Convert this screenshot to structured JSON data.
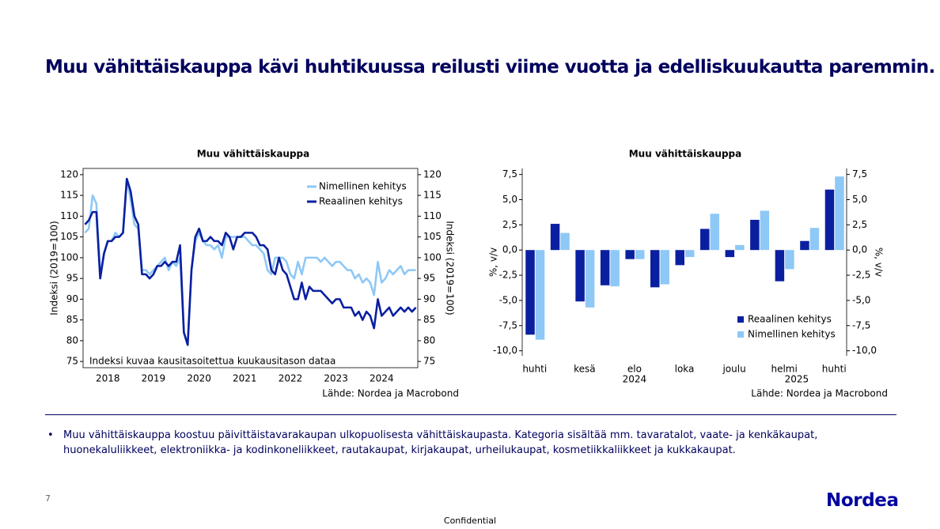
{
  "title": "Muu vähittäiskauppa kävi huhtikuussa reilusti viime vuotta ja edelliskuukautta paremmin.",
  "chart_data": [
    {
      "type": "line",
      "title": "Muu vähittäiskauppa",
      "ylabel": "Indeksi (2019=100)",
      "y2label": "Indeksi (2019=100)",
      "note": "Indeksi kuvaa kausitasoitettua kuukausitason dataa",
      "source": "Lähde: Nordea ja Macrobond",
      "legend": "upper right",
      "categories": [
        null,
        null,
        null,
        null,
        null,
        null,
        "2018",
        null,
        null,
        null,
        null,
        null,
        null,
        null,
        null,
        null,
        null,
        null,
        "2019",
        null,
        null,
        null,
        null,
        null,
        null,
        null,
        null,
        null,
        null,
        null,
        "2020",
        null,
        null,
        null,
        null,
        null,
        null,
        null,
        null,
        null,
        null,
        null,
        "2021",
        null,
        null,
        null,
        null,
        null,
        null,
        null,
        null,
        null,
        null,
        null,
        "2022",
        null,
        null,
        null,
        null,
        null,
        null,
        null,
        null,
        null,
        null,
        null,
        "2023",
        null,
        null,
        null,
        null,
        null,
        null,
        null,
        null,
        null,
        null,
        null,
        "2024",
        null,
        null,
        null,
        null,
        null,
        null,
        null,
        null,
        null
      ],
      "ylim": [
        73.5,
        121.5
      ],
      "yticks": [
        75,
        80,
        85,
        90,
        95,
        100,
        105,
        110,
        115,
        120
      ],
      "y2lim": [
        73.5,
        121.5
      ],
      "y2ticks": [
        75,
        80,
        85,
        90,
        95,
        100,
        105,
        110,
        115,
        120
      ],
      "series": [
        {
          "name": "Nimellinen kehitys",
          "color": "#8ec8f6",
          "values": [
            106,
            107,
            115,
            113,
            96,
            101,
            104,
            104,
            106,
            105,
            106,
            119,
            114,
            108,
            107,
            97,
            97,
            96,
            97,
            98,
            99,
            100,
            97,
            99,
            98,
            100,
            82,
            79,
            97,
            104,
            106,
            104,
            103,
            103,
            102,
            103,
            100,
            105,
            105,
            105,
            105,
            105,
            105,
            104,
            103,
            103,
            102,
            101,
            97,
            96,
            100,
            100,
            100,
            99,
            96,
            95,
            99,
            96,
            100,
            100,
            100,
            100,
            99,
            100,
            99,
            98,
            99,
            99,
            98,
            97,
            97,
            95,
            96,
            94,
            95,
            94,
            91,
            99,
            94,
            95,
            97,
            96,
            97,
            98,
            96,
            97,
            97,
            97
          ]
        },
        {
          "name": "Reaalinen kehitys",
          "color": "#0a1fa0",
          "values": [
            108,
            109,
            111,
            111,
            95,
            101,
            104,
            104,
            105,
            105,
            106,
            119,
            116,
            110,
            108,
            96,
            96,
            95,
            96,
            98,
            98,
            99,
            98,
            99,
            99,
            103,
            82,
            79,
            97,
            105,
            107,
            104,
            104,
            105,
            104,
            104,
            103,
            106,
            105,
            102,
            105,
            105,
            106,
            106,
            106,
            105,
            103,
            103,
            102,
            97,
            96,
            100,
            97,
            96,
            93,
            90,
            90,
            94,
            90,
            93,
            92,
            92,
            92,
            91,
            90,
            89,
            90,
            90,
            88,
            88,
            88,
            86,
            87,
            85,
            87,
            86,
            83,
            90,
            86,
            87,
            88,
            86,
            87,
            88,
            87,
            88,
            87,
            88
          ]
        }
      ]
    },
    {
      "type": "bar",
      "title": "Muu vähittäiskauppa",
      "ylabel": "%, v/v",
      "y2label": "%, v/v",
      "source": "Lähde: Nordea ja Macrobond",
      "legend": "lower right",
      "categories": [
        "huhti",
        null,
        "kesä",
        null,
        "elo",
        null,
        "loka",
        null,
        "joulu",
        null,
        "helmi",
        null,
        "huhti"
      ],
      "x_group_labels": [
        "2024",
        "2025"
      ],
      "ylim": [
        -10.5,
        8.1
      ],
      "yticks": [
        {
          "value": 7.5,
          "label": "7,5"
        },
        {
          "value": 5,
          "label": "5,0"
        },
        {
          "value": 2.5,
          "label": "2,5"
        },
        {
          "value": 0,
          "label": "0,0"
        },
        {
          "value": -2.5,
          "label": "-2,5"
        },
        {
          "value": -5,
          "label": "-5,0"
        },
        {
          "value": -7.5,
          "label": "-7,5"
        },
        {
          "value": -10,
          "label": "-10,0"
        }
      ],
      "y2lim": [
        -10.5,
        8.1
      ],
      "y2ticks": [
        {
          "value": 7.5,
          "label": "7,5"
        },
        {
          "value": 5,
          "label": "5,0"
        },
        {
          "value": 2.5,
          "label": "2,5"
        },
        {
          "value": 0,
          "label": "0,0"
        },
        {
          "value": -2.5,
          "label": "-2,5"
        },
        {
          "value": -5,
          "label": "-5,0"
        },
        {
          "value": -7.5,
          "label": "-7,5"
        },
        {
          "value": -10,
          "label": "-10,0"
        }
      ],
      "series": [
        {
          "name": "Reaalinen kehitys",
          "color": "#0a1fa0",
          "values": [
            -8.4,
            2.6,
            -5.1,
            -3.5,
            -0.9,
            -3.7,
            -1.5,
            2.1,
            -0.7,
            3.0,
            -3.1,
            0.9,
            6.0
          ]
        },
        {
          "name": "Nimellinen kehitys",
          "color": "#8ec8f6",
          "values": [
            -8.9,
            1.7,
            -5.7,
            -3.6,
            -0.9,
            -3.4,
            -0.7,
            3.6,
            0.5,
            3.9,
            -1.9,
            2.2,
            7.3
          ]
        }
      ]
    }
  ],
  "bullets": [
    "Muu vähittäiskauppa koostuu päivittäistavarakaupan ulkopuolisesta vähittäiskaupasta. Kategoria sisältää mm. tavaratalot, vaate- ja kenkäkaupat, huonekaluliikkeet, elektroniikka- ja kodinkoneliikkeet, rautakaupat, kirjakaupat, urheilukaupat, kosmetiikkaliikkeet ja kukkakaupat."
  ],
  "page_number": "7",
  "logo": "Nordea",
  "footer": "Confidential"
}
